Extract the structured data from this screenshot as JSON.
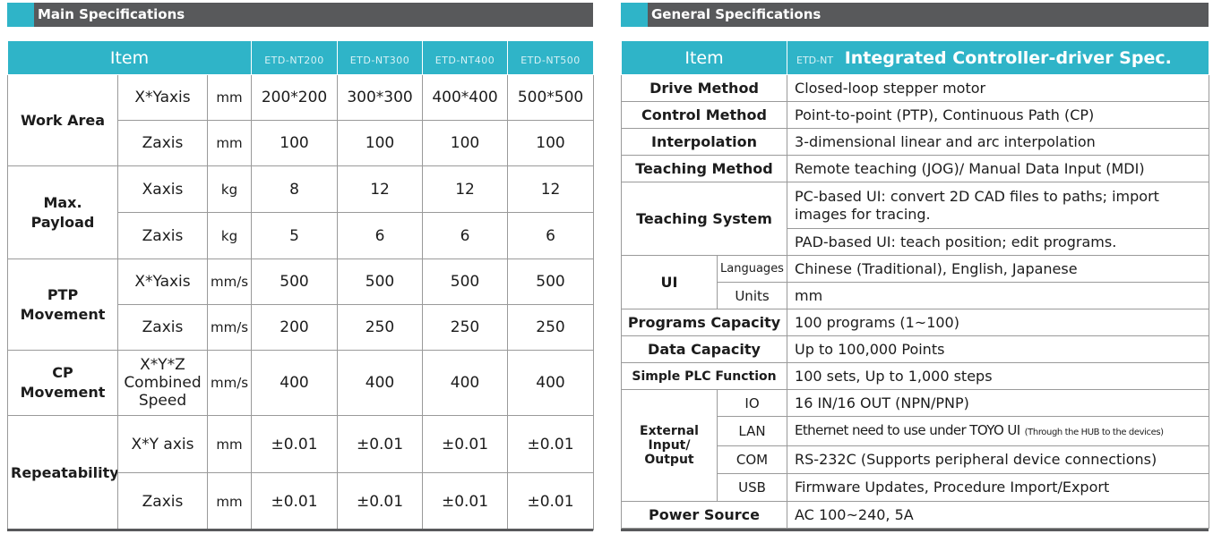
{
  "main": {
    "title": "Main Specifications",
    "item_header": "Item",
    "models": [
      "ETD-NT200",
      "ETD-NT300",
      "ETD-NT400",
      "ETD-NT500"
    ],
    "groups": [
      {
        "name": "Work Area",
        "rows": [
          {
            "axis": "X*Yaxis",
            "unit": "mm",
            "values": [
              "200*200",
              "300*300",
              "400*400",
              "500*500"
            ]
          },
          {
            "axis": "Zaxis",
            "unit": "mm",
            "values": [
              "100",
              "100",
              "100",
              "100"
            ]
          }
        ]
      },
      {
        "name_lines": [
          "Max.",
          "Payload"
        ],
        "rows": [
          {
            "axis": "Xaxis",
            "unit": "kg",
            "values": [
              "8",
              "12",
              "12",
              "12"
            ]
          },
          {
            "axis": "Zaxis",
            "unit": "kg",
            "values": [
              "5",
              "6",
              "6",
              "6"
            ]
          }
        ]
      },
      {
        "name_lines": [
          "PTP",
          "Movement"
        ],
        "rows": [
          {
            "axis": "X*Yaxis",
            "unit": "mm/s",
            "values": [
              "500",
              "500",
              "500",
              "500"
            ]
          },
          {
            "axis": "Zaxis",
            "unit": "mm/s",
            "values": [
              "200",
              "250",
              "250",
              "250"
            ]
          }
        ]
      },
      {
        "name_lines": [
          "CP",
          "Movement"
        ],
        "rows": [
          {
            "axis_lines": [
              "X*Y*Z",
              "Combined",
              "Speed"
            ],
            "unit": "mm/s",
            "values": [
              "400",
              "400",
              "400",
              "400"
            ]
          }
        ]
      },
      {
        "name": "Repeatability",
        "rows": [
          {
            "axis": "X*Y axis",
            "unit": "mm",
            "values": [
              "±0.01",
              "±0.01",
              "±0.01",
              "±0.01"
            ]
          },
          {
            "axis": "Zaxis",
            "unit": "mm",
            "values": [
              "±0.01",
              "±0.01",
              "±0.01",
              "±0.01"
            ]
          }
        ]
      }
    ]
  },
  "general": {
    "title": "General Specifications",
    "item_header": "Item",
    "spec_code": "ETD-NT",
    "spec_header": "Integrated Controller-driver Spec.",
    "drive_method": {
      "name": "Drive Method",
      "value": "Closed-loop stepper motor"
    },
    "control_method": {
      "name": "Control Method",
      "value": "Point-to-point (PTP), Continuous Path (CP)"
    },
    "interpolation": {
      "name": "Interpolation",
      "value": "3-dimensional linear and arc interpolation"
    },
    "teaching_method": {
      "name": "Teaching Method",
      "value": "Remote teaching (JOG)/ Manual Data Input (MDI)"
    },
    "teaching_system": {
      "name": "Teaching System",
      "pc_value": "PC-based UI: convert 2D CAD files to paths; import images for tracing.",
      "pad_value": "PAD-based UI: teach position; edit programs."
    },
    "ui": {
      "name": "UI",
      "languages_label": "Languages",
      "languages_value": "Chinese (Traditional), English, Japanese",
      "units_label": "Units",
      "units_value": "mm"
    },
    "programs_capacity": {
      "name": "Programs  Capacity",
      "value": "100 programs (1~100)"
    },
    "data_capacity": {
      "name": "Data Capacity",
      "value": "Up to 100,000 Points"
    },
    "simple_plc": {
      "name": "Simple PLC Function",
      "value": "100 sets, Up to 1,000 steps"
    },
    "external_io": {
      "name_lines": [
        "External",
        "Input/",
        "Output"
      ],
      "io_label": "IO",
      "io_value": "16 IN/16 OUT (NPN/PNP)",
      "lan_label": "LAN",
      "lan_value": "Ethernet need to use under TOYO UI",
      "lan_note": "(Through the HUB to the devices)",
      "com_label": "COM",
      "com_value": "RS-232C (Supports peripheral device connections)",
      "usb_label": "USB",
      "usb_value": "Firmware Updates, Procedure Import/Export"
    },
    "power_source": {
      "name": "Power Source",
      "value": "AC 100~240, 5A"
    }
  },
  "colors": {
    "header_teal": "#2fb4c8",
    "title_bar_gray": "#58595b"
  }
}
